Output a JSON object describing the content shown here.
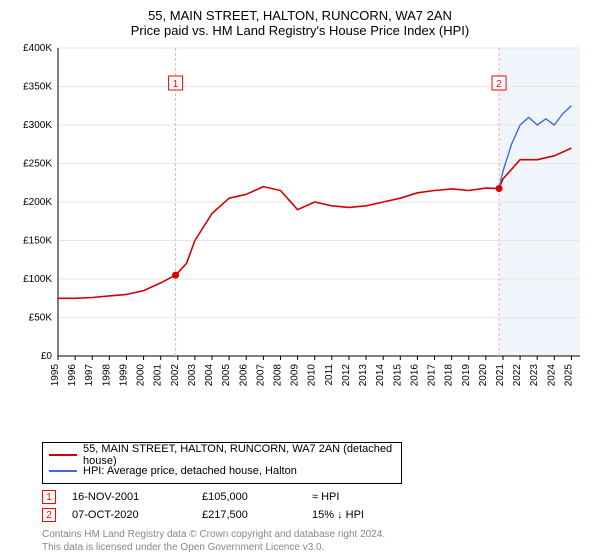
{
  "title": "55, MAIN STREET, HALTON, RUNCORN, WA7 2AN",
  "subtitle": "Price paid vs. HM Land Registry's House Price Index (HPI)",
  "chart": {
    "type": "line",
    "background_color": "#ffffff",
    "plot_background_color": "#ffffff",
    "future_band_color": "#f0f4fb",
    "grid_color": "#e6e6e6",
    "axis_color": "#000000",
    "label_fontsize": 11,
    "tick_fontsize": 10,
    "xlim": [
      1995,
      2025.5
    ],
    "ylim": [
      0,
      400000
    ],
    "ytick_step": 50000,
    "yticks": [
      "£0",
      "£50K",
      "£100K",
      "£150K",
      "£200K",
      "£250K",
      "£300K",
      "£350K",
      "£400K"
    ],
    "xticks": [
      1995,
      1996,
      1997,
      1998,
      1999,
      2000,
      2001,
      2002,
      2003,
      2004,
      2005,
      2006,
      2007,
      2008,
      2009,
      2010,
      2011,
      2012,
      2013,
      2014,
      2015,
      2016,
      2017,
      2018,
      2019,
      2020,
      2021,
      2022,
      2023,
      2024,
      2025
    ],
    "series": [
      {
        "name": "55, MAIN STREET, HALTON, RUNCORN, WA7 2AN (detached house)",
        "color": "#d40000",
        "line_width": 1.6,
        "years": [
          1995,
          1996,
          1997,
          1998,
          1999,
          2000,
          2001,
          2001.87,
          2002.5,
          2003,
          2004,
          2005,
          2006,
          2007,
          2008,
          2009,
          2010,
          2011,
          2012,
          2013,
          2014,
          2015,
          2016,
          2017,
          2018,
          2019,
          2020,
          2020.77,
          2021,
          2022,
          2023,
          2024,
          2025
        ],
        "values": [
          75000,
          75000,
          76000,
          78000,
          80000,
          85000,
          95000,
          105000,
          120000,
          150000,
          185000,
          205000,
          210000,
          220000,
          215000,
          190000,
          200000,
          195000,
          193000,
          195000,
          200000,
          205000,
          212000,
          215000,
          217000,
          215000,
          218000,
          217500,
          230000,
          255000,
          255000,
          260000,
          270000
        ]
      },
      {
        "name": "HPI: Average price, detached house, Halton",
        "color": "#3a6fd8",
        "line_width": 1.4,
        "years": [
          2020.77,
          2021,
          2021.5,
          2022,
          2022.5,
          2023,
          2023.5,
          2024,
          2024.5,
          2025
        ],
        "values": [
          217500,
          240000,
          275000,
          300000,
          310000,
          300000,
          308000,
          300000,
          315000,
          325000
        ]
      }
    ],
    "sales_markers": [
      {
        "num": "1",
        "year": 2001.87,
        "value": 105000,
        "date": "16-NOV-2001",
        "price": "£105,000",
        "delta": "≈ HPI"
      },
      {
        "num": "2",
        "year": 2020.77,
        "value": 217500,
        "date": "07-OCT-2020",
        "price": "£217,500",
        "delta": "15% ↓ HPI"
      }
    ],
    "future_band_start": 2020.77,
    "marker_line_color": "#f4b0b0",
    "marker_dot_color": "#d40000",
    "marker_box_border": "#ff0000",
    "marker_box_text": "#ff0000"
  },
  "legend": {
    "items": [
      {
        "label": "55, MAIN STREET, HALTON, RUNCORN, WA7 2AN (detached house)",
        "color": "#d40000"
      },
      {
        "label": "HPI: Average price, detached house, Halton",
        "color": "#3a6fd8"
      }
    ]
  },
  "footer": {
    "line1": "Contains HM Land Registry data © Crown copyright and database right 2024.",
    "line2": "This data is licensed under the Open Government Licence v3.0."
  }
}
